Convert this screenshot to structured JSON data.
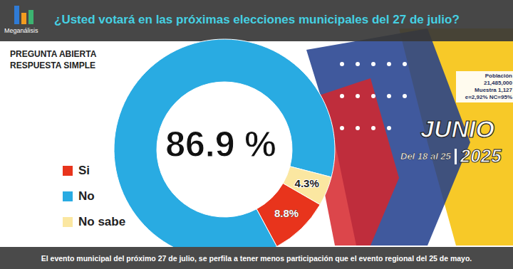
{
  "chart_data": {
    "type": "pie",
    "title": "¿Usted votará en las próximas elecciones municipales del 27 de julio?",
    "subtitle": [
      "PREGUNTA ABIERTA",
      "RESPUESTA SIMPLE"
    ],
    "categories": [
      "Si",
      "No",
      "No sabe"
    ],
    "values": [
      8.8,
      86.9,
      4.3
    ],
    "value_labels": [
      "8.8%",
      "86.9 %",
      "4.3%"
    ],
    "colors": [
      "#e8341c",
      "#29abe2",
      "#fbe7a1"
    ],
    "data_labels": true,
    "legend": "left"
  },
  "header": {
    "brand": "Meganálisis"
  },
  "sample_box": [
    "Población",
    "21,485,000",
    "Muestra 1,127",
    "e=2,92%  NC=95%"
  ],
  "period": {
    "month": "JUNIO",
    "days": "Del 18 al 25",
    "year": "2025"
  },
  "footer": "El evento municipal del próximo 27 de julio, se perfila a tener menos participación que el evento regional del 25 de mayo."
}
